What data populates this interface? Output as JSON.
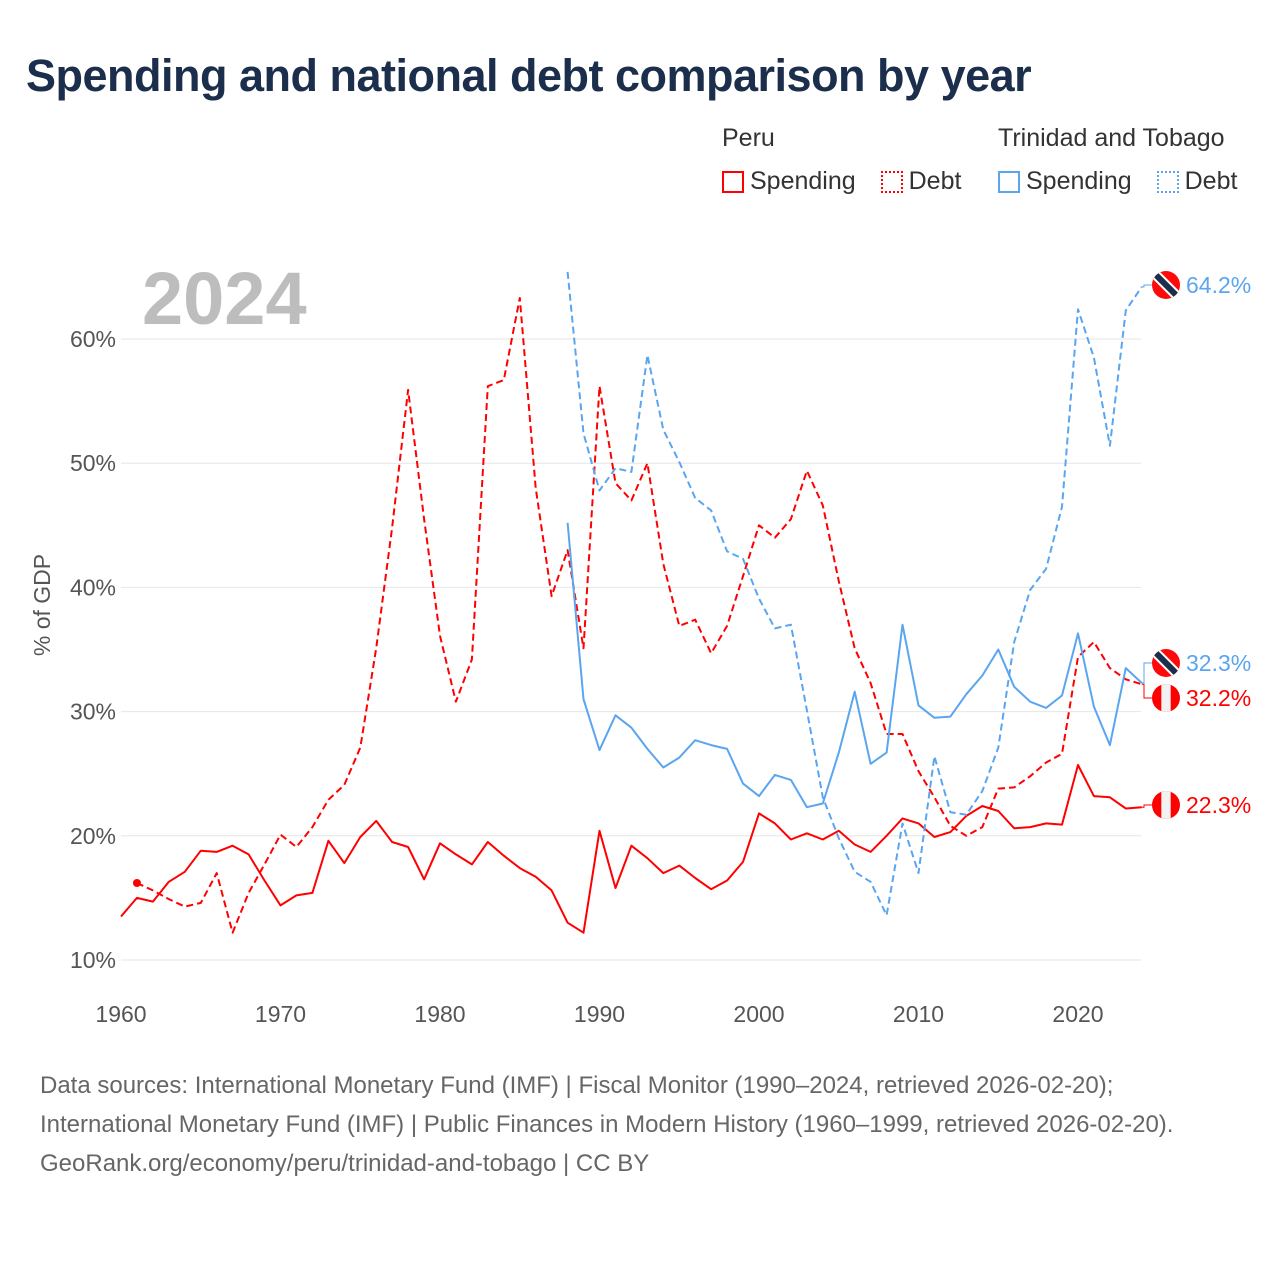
{
  "title": "Spending and national debt comparison by year",
  "legend": {
    "groups": [
      {
        "name": "Peru",
        "color": "#ff0000",
        "items": [
          "Spending",
          "Debt"
        ]
      },
      {
        "name": "Trinidad and Tobago",
        "color": "#5aa5f0",
        "items": [
          "Spending",
          "Debt"
        ]
      }
    ]
  },
  "footer": {
    "sources": "Data sources: International Monetary Fund (IMF) | Fiscal Monitor (1990–2024, retrieved 2026-02-20); International Monetary Fund (IMF) | Public Finances in Modern History (1960–1999, retrieved 2026-02-20).",
    "credit": "GeoRank.org/economy/peru/trinidad-and-tobago | CC BY"
  },
  "chart_data": {
    "type": "line",
    "title": "Spending and national debt comparison by year",
    "year_label": "2024",
    "xlabel": "",
    "ylabel": "% of GDP",
    "xlim": [
      1960,
      2024
    ],
    "ylim": [
      10,
      65
    ],
    "x_ticks": [
      "1960",
      "1970",
      "1980",
      "1990",
      "2000",
      "2010",
      "2020"
    ],
    "y_ticks": [
      "10%",
      "20%",
      "30%",
      "40%",
      "50%",
      "60%"
    ],
    "grid": true,
    "legend_position": "top-right",
    "series": [
      {
        "name": "Peru Spending",
        "color": "#ff0000",
        "dash": false,
        "start_year": 1960,
        "values": [
          13.5,
          15.0,
          14.7,
          16.3,
          17.1,
          18.8,
          18.7,
          19.2,
          18.5,
          16.4,
          14.4,
          15.2,
          15.4,
          19.6,
          17.8,
          19.9,
          21.2,
          19.5,
          19.1,
          16.5,
          19.4,
          18.5,
          17.7,
          19.5,
          18.4,
          17.4,
          16.7,
          15.6,
          13.0,
          12.2,
          20.4,
          15.8,
          19.2,
          18.2,
          17.0,
          17.6,
          16.6,
          15.7,
          16.4,
          17.9,
          21.8,
          21.0,
          19.7,
          20.2,
          19.7,
          20.4,
          19.3,
          18.7,
          20.0,
          21.4,
          21.0,
          19.9,
          20.3,
          21.6,
          22.4,
          22.0,
          20.6,
          20.7,
          21.0,
          20.9,
          25.7,
          23.2,
          23.1,
          22.2,
          22.3
        ],
        "end_label": "22.3%",
        "flag": "peru-flag"
      },
      {
        "name": "Peru Debt",
        "color": "#ff0000",
        "dash": true,
        "start_year": 1961,
        "values": [
          16.2,
          15.6,
          14.9,
          14.3,
          14.6,
          17.0,
          12.2,
          15.4,
          17.7,
          20.1,
          19.1,
          20.7,
          22.9,
          24.1,
          27.1,
          35.1,
          44.8,
          55.9,
          45.5,
          36.1,
          30.8,
          34.2,
          56.2,
          56.7,
          63.3,
          48.0,
          39.3,
          43.0,
          35.1,
          56.2,
          48.4,
          47.0,
          50.0,
          41.9,
          36.9,
          37.4,
          34.7,
          36.9,
          40.9,
          45.0,
          44.0,
          45.5,
          49.4,
          46.6,
          40.5,
          35.1,
          32.3,
          28.2,
          28.2,
          25.2,
          23.1,
          20.8,
          20.0,
          20.7,
          23.8,
          23.9,
          24.8,
          25.9,
          26.6,
          34.4,
          35.6,
          33.5,
          32.6,
          32.2
        ],
        "end_label": "32.2%",
        "flag": "peru-flag"
      },
      {
        "name": "Trinidad and Tobago Spending",
        "color": "#5aa5f0",
        "dash": false,
        "start_year": 1988,
        "values": [
          45.2,
          31.0,
          26.9,
          29.7,
          28.7,
          27.0,
          25.5,
          26.3,
          27.7,
          27.3,
          27.0,
          24.2,
          23.2,
          24.9,
          24.5,
          22.3,
          22.6,
          26.7,
          31.6,
          25.8,
          26.7,
          37.0,
          30.5,
          29.5,
          29.6,
          31.4,
          32.9,
          35.0,
          32.0,
          30.8,
          30.3,
          31.3,
          36.3,
          30.4,
          27.3,
          33.5,
          32.3
        ],
        "end_label": "32.3%",
        "flag": "trinidad-and-tobago-flag"
      },
      {
        "name": "Trinidad and Tobago Debt",
        "color": "#5aa5f0",
        "dash": true,
        "start_year": 1988,
        "values": [
          65.4,
          52.4,
          47.8,
          49.6,
          49.3,
          58.7,
          52.7,
          50.1,
          47.2,
          46.2,
          42.9,
          42.3,
          39.1,
          36.7,
          37.0,
          30.1,
          23.1,
          19.8,
          17.1,
          16.3,
          13.6,
          21.0,
          17.0,
          26.4,
          21.9,
          21.7,
          23.6,
          27.1,
          35.6,
          39.8,
          41.5,
          46.5,
          62.4,
          58.5,
          51.4,
          62.3,
          64.2
        ],
        "end_label": "64.2%",
        "flag": "trinidad-and-tobago-flag"
      }
    ]
  }
}
